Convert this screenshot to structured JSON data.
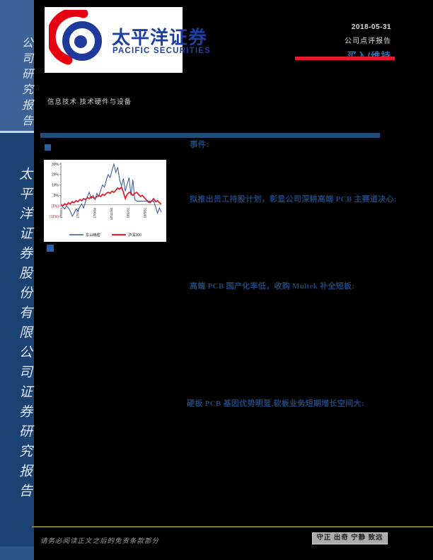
{
  "sidebar": {
    "top_label": "公司研究报告",
    "bottom_label": "太平洋证券股份有限公司证券研究报告"
  },
  "brand": {
    "cn": "太平洋证券",
    "en": "PACIFIC SECURITIES"
  },
  "meta": {
    "date": "2018-05-31",
    "report_type": "公司点评报告",
    "rating": "买入/维持"
  },
  "header": {
    "industry": "信息技术 技术硬件与设备"
  },
  "sections": {
    "event": "事件:",
    "point1": "拟推出员工持股计划，彰显公司深耕高端 PCB 主赛道决心:",
    "point2": "高端 PCB 国产化率低，收购 Multek 补全短板:",
    "point3": "硬板 PCB 基因优势明显,软板业务短期增长空间大:"
  },
  "footer": {
    "disclaimer": "请务必阅读正文之后的免责条款部分",
    "motto": "守正 出奇 宁静 致远"
  },
  "colors": {
    "accent_navy": "#1F4E79",
    "header_navy": "#1E4576",
    "rating_blue": "#2E74C4",
    "red_bar": "#E8182C",
    "gold_line": "#857735",
    "sidebar_top": "#3D6396",
    "sidebar_bottom": "#1B4272",
    "logo_blue": "#1E3F9F",
    "logo_red": "#E60012"
  },
  "chart_data": {
    "type": "line",
    "title": "",
    "xlabel": "",
    "ylabel": "",
    "ylim": [
      -11,
      39
    ],
    "grid": false,
    "legend_position": "bottom",
    "y_ticks": [
      "39%",
      "29%",
      "19%",
      "9%",
      "(1%)",
      "(11%)"
    ],
    "y_tick_values": [
      39,
      29,
      19,
      9,
      -1,
      -11
    ],
    "x_ticks": [
      "17/5/31",
      "17/7/31",
      "17/9/30",
      "17/11/30",
      "18/1/31",
      "18/3/31"
    ],
    "series": [
      {
        "name": "东山精密",
        "color": "#2F5597",
        "width": 1,
        "values": [
          0,
          -2,
          -4,
          -1,
          -3,
          -6,
          -11,
          -8,
          -4,
          -6,
          -2,
          1,
          -3,
          3,
          8,
          12,
          6,
          9,
          5,
          11,
          8,
          14,
          19,
          17,
          24,
          29,
          26,
          33,
          39,
          31,
          36,
          24,
          18,
          25,
          13,
          20,
          26,
          9,
          24,
          5,
          3.5,
          3.5,
          3.5,
          3.5,
          3.5,
          3.5,
          3.5,
          3.5,
          3.5,
          3.5,
          -2,
          -8,
          -3,
          -7
        ]
      },
      {
        "name": "沪深300",
        "color": "#E02030",
        "width": 1.8,
        "values": [
          0,
          -1,
          1,
          0,
          2,
          1,
          3,
          2,
          4,
          3,
          5,
          4,
          6,
          5,
          7,
          6,
          8,
          7,
          6,
          8,
          9,
          8,
          10,
          9,
          11,
          12,
          11,
          13,
          12,
          14,
          16,
          15,
          17,
          12,
          6,
          10,
          12,
          11,
          9,
          11,
          12,
          10,
          8,
          9,
          7,
          5,
          3,
          2,
          4,
          6,
          3,
          4,
          2,
          1
        ]
      }
    ]
  }
}
